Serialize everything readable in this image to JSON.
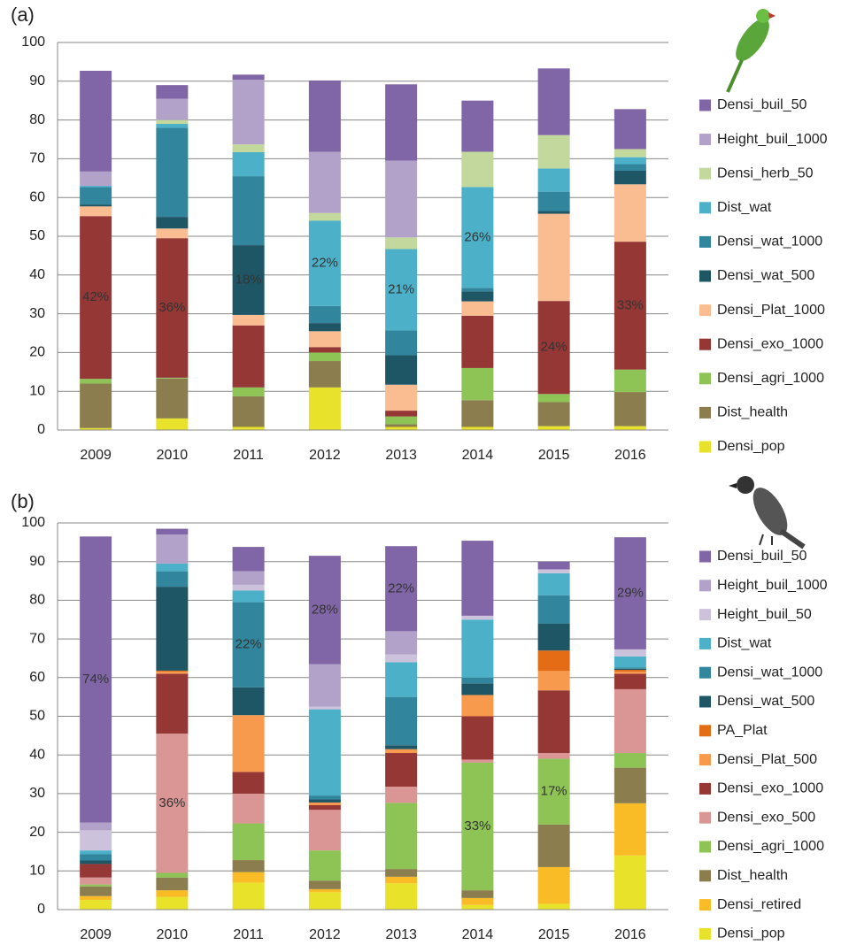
{
  "chart_data": [
    {
      "type": "bar",
      "stacked": true,
      "title": "(a)",
      "categories": [
        "2009",
        "2010",
        "2011",
        "2012",
        "2013",
        "2014",
        "2015",
        "2016"
      ],
      "ylim": [
        0,
        100
      ],
      "yticks": [
        0,
        10,
        20,
        30,
        40,
        50,
        60,
        70,
        80,
        90,
        100
      ],
      "grid": true,
      "series": [
        {
          "name": "Densi_pop",
          "color": "#e9e22a",
          "values": [
            0.5,
            3,
            0.8,
            11,
            0.8,
            0.8,
            1,
            1
          ]
        },
        {
          "name": "Dist_health",
          "color": "#8c7d4e",
          "values": [
            11.5,
            10.3,
            7.9,
            6.8,
            0.7,
            6.9,
            6.2,
            8.8
          ]
        },
        {
          "name": "Densi_agri_1000",
          "color": "#8dc455",
          "values": [
            1.2,
            0.2,
            2.3,
            2.2,
            2,
            8.3,
            2.1,
            5.8
          ]
        },
        {
          "name": "Densi_exo_1000",
          "color": "#953735",
          "values": [
            42,
            36,
            16,
            1.4,
            1.5,
            13.5,
            24,
            33
          ],
          "value_labels": [
            "42%",
            "36%",
            null,
            null,
            null,
            null,
            "24%",
            "33%"
          ]
        },
        {
          "name": "Densi_Plat_1000",
          "color": "#f9bd91",
          "values": [
            2.5,
            2.5,
            2.7,
            4.1,
            6.7,
            3.7,
            22.5,
            14.8
          ]
        },
        {
          "name": "Densi_wat_500",
          "color": "#1f5666",
          "values": [
            0.5,
            3,
            18,
            2.1,
            7.6,
            2.6,
            0.7,
            3.5
          ],
          "value_labels": [
            null,
            null,
            "18%",
            null,
            null,
            null,
            null,
            null
          ]
        },
        {
          "name": "Densi_wat_1000",
          "color": "#31859c",
          "values": [
            4.5,
            23,
            17.8,
            4.4,
            6.4,
            0.9,
            5,
            1.7
          ]
        },
        {
          "name": "Dist_wat",
          "color": "#4bb0c8",
          "values": [
            0.3,
            1,
            6.2,
            22,
            21,
            26,
            6,
            1.8
          ],
          "value_labels": [
            null,
            null,
            null,
            "22%",
            "21%",
            "26%",
            null,
            null
          ]
        },
        {
          "name": "Densi_herb_50",
          "color": "#c3d89d",
          "values": [
            0,
            1,
            2,
            2,
            3,
            9.1,
            8.6,
            2.1
          ]
        },
        {
          "name": "Height_buil_1000",
          "color": "#b2a2c9",
          "values": [
            3.7,
            5.5,
            16.7,
            15.8,
            19.8,
            0,
            0,
            0
          ]
        },
        {
          "name": "Densi_buil_50",
          "color": "#8066a6",
          "values": [
            26,
            3.5,
            1.3,
            18.4,
            19.7,
            13.2,
            17.2,
            10.3
          ]
        }
      ]
    },
    {
      "type": "bar",
      "stacked": true,
      "title": "(b)",
      "categories": [
        "2009",
        "2010",
        "2011",
        "2012",
        "2013",
        "2014",
        "2015",
        "2016"
      ],
      "ylim": [
        0,
        100
      ],
      "yticks": [
        0,
        10,
        20,
        30,
        40,
        50,
        60,
        70,
        80,
        90,
        100
      ],
      "grid": true,
      "series": [
        {
          "name": "Densi_pop",
          "color": "#e9e22a",
          "values": [
            2.5,
            3.3,
            7,
            4.5,
            6.8,
            1.2,
            1.5,
            14
          ]
        },
        {
          "name": "Densi_retired",
          "color": "#f9bb26",
          "values": [
            1,
            1.7,
            2.7,
            0.8,
            1.7,
            1.8,
            9.5,
            13.5
          ]
        },
        {
          "name": "Dist_health",
          "color": "#8c7d4e",
          "values": [
            2.5,
            3.3,
            3.1,
            2.2,
            2,
            2,
            11,
            9.2
          ]
        },
        {
          "name": "Densi_agri_1000",
          "color": "#8dc455",
          "values": [
            0.5,
            1.2,
            9.5,
            7.8,
            17.1,
            33,
            17,
            3.8
          ],
          "value_labels": [
            null,
            null,
            null,
            null,
            null,
            "33%",
            "17%",
            null
          ]
        },
        {
          "name": "Densi_exo_500",
          "color": "#d99694",
          "values": [
            1.8,
            36,
            7.7,
            10.5,
            4.2,
            0.8,
            1.5,
            16.5
          ],
          "value_labels": [
            null,
            "36%",
            null,
            null,
            null,
            null,
            null,
            null
          ]
        },
        {
          "name": "Densi_exo_1000",
          "color": "#953735",
          "values": [
            3.5,
            15.5,
            5.6,
            1.2,
            8.7,
            11.2,
            16.2,
            4
          ]
        },
        {
          "name": "Densi_Plat_500",
          "color": "#f79a4e",
          "values": [
            0,
            0.5,
            14.7,
            0.7,
            1,
            5.5,
            5,
            0.5
          ]
        },
        {
          "name": "PA_Plat",
          "color": "#e46c14",
          "values": [
            0,
            0.3,
            0,
            0,
            0,
            0,
            5.3,
            0.5
          ]
        },
        {
          "name": "Densi_wat_500",
          "color": "#1f5666",
          "values": [
            0.9,
            21.7,
            7.2,
            0.8,
            1,
            3,
            7,
            0.3
          ]
        },
        {
          "name": "Densi_wat_1000",
          "color": "#31859c",
          "values": [
            1.6,
            4,
            22,
            1,
            12.5,
            1.5,
            7.3,
            0.3
          ],
          "value_labels": [
            null,
            null,
            "22%",
            null,
            null,
            null,
            null,
            null
          ]
        },
        {
          "name": "Dist_wat",
          "color": "#4bb0c8",
          "values": [
            1,
            2,
            3,
            22.3,
            9,
            15,
            5.7,
            2.9
          ]
        },
        {
          "name": "Height_buil_50",
          "color": "#ccc2dc",
          "values": [
            5.2,
            0,
            1.5,
            0.7,
            2,
            1,
            1,
            1.8
          ]
        },
        {
          "name": "Height_buil_1000",
          "color": "#b2a2c9",
          "values": [
            2,
            7.5,
            3.5,
            11,
            6,
            0,
            0,
            0
          ]
        },
        {
          "name": "Densi_buil_50",
          "color": "#8066a6",
          "values": [
            74,
            1.5,
            6.3,
            28,
            22,
            19.4,
            2,
            29
          ],
          "value_labels": [
            "74%",
            null,
            null,
            "28%",
            "22%",
            null,
            null,
            "29%"
          ]
        }
      ]
    }
  ]
}
